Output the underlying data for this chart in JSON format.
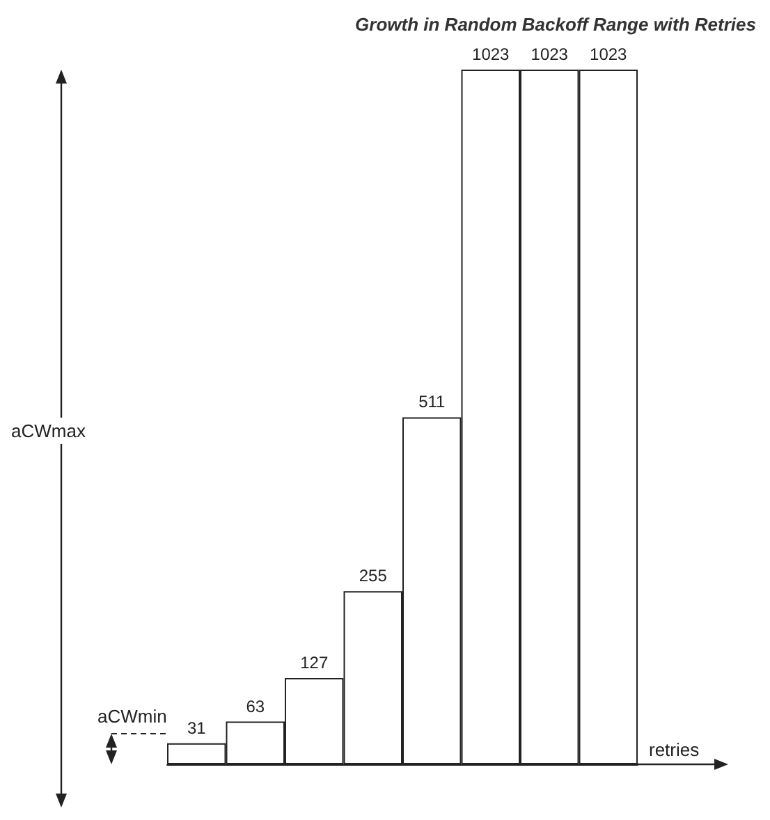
{
  "chart_data": {
    "type": "bar",
    "title": "Growth in Random Backoff Range with Retries",
    "xlabel": "retries",
    "categories": [
      null,
      null,
      null,
      null,
      null,
      null,
      null,
      null
    ],
    "values": [
      31,
      63,
      127,
      255,
      511,
      1023,
      1023,
      1023
    ],
    "color": "#ffffff",
    "data_labels": true,
    "grid": false,
    "annotations": [
      "aCWmax",
      "aCWmin"
    ]
  }
}
